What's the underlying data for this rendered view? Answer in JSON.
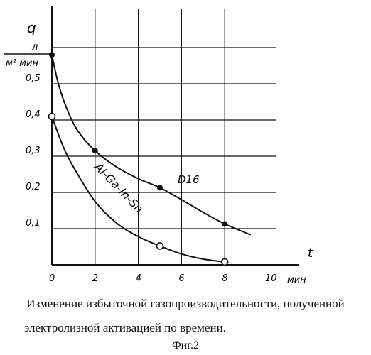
{
  "chart_data": {
    "type": "line",
    "ylabel_symbol": "q",
    "ylabel_unit_numerator": "л",
    "ylabel_unit_denominator": "м² мин",
    "xlabel_symbol": "t",
    "xlabel_unit": "мин",
    "x_ticks": [
      "0",
      "2",
      "4",
      "6",
      "8",
      "10"
    ],
    "y_ticks": [
      "0,1",
      "0,2",
      "0,3",
      "0,4",
      "0,5"
    ],
    "xlim": [
      0,
      10
    ],
    "ylim": [
      0,
      0.6
    ],
    "grid": true,
    "series": [
      {
        "name": "D16",
        "marker": "filled",
        "points": [
          [
            0,
            0.58
          ],
          [
            2,
            0.315
          ],
          [
            5,
            0.213
          ],
          [
            8,
            0.113
          ]
        ],
        "curve": [
          [
            0,
            0.58
          ],
          [
            0.3,
            0.5
          ],
          [
            0.7,
            0.43
          ],
          [
            1.2,
            0.37
          ],
          [
            2,
            0.315
          ],
          [
            3,
            0.27
          ],
          [
            4,
            0.238
          ],
          [
            5,
            0.213
          ],
          [
            6,
            0.18
          ],
          [
            7,
            0.145
          ],
          [
            8,
            0.113
          ],
          [
            9.2,
            0.083
          ]
        ]
      },
      {
        "name": "Al-Ga-In-Sn",
        "marker": "open",
        "points": [
          [
            0,
            0.41
          ],
          [
            5,
            0.052
          ],
          [
            8,
            0.008
          ]
        ],
        "curve": [
          [
            0,
            0.41
          ],
          [
            0.5,
            0.33
          ],
          [
            1,
            0.27
          ],
          [
            2,
            0.175
          ],
          [
            3,
            0.115
          ],
          [
            4,
            0.078
          ],
          [
            5,
            0.052
          ],
          [
            6,
            0.03
          ],
          [
            7,
            0.016
          ],
          [
            8,
            0.008
          ]
        ]
      }
    ]
  },
  "caption_line1": "Изменение избыточной газопроизводительности, полученной",
  "caption_line2": "электролизной активацией по времени.",
  "figure_label": "Фиг.2"
}
